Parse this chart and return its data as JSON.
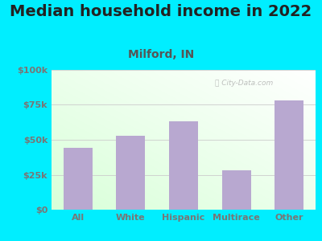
{
  "title": "Median household income in 2022",
  "subtitle": "Milford, IN",
  "categories": [
    "All",
    "White",
    "Hispanic",
    "Multirace",
    "Other"
  ],
  "values": [
    44000,
    53000,
    63000,
    28000,
    78000
  ],
  "bar_color": "#b8a8d0",
  "title_fontsize": 14,
  "title_color": "#222222",
  "subtitle_fontsize": 10,
  "subtitle_color": "#555555",
  "tick_label_color": "#777777",
  "background_outer": "#00eeff",
  "ylim": [
    0,
    100000
  ],
  "yticks": [
    0,
    25000,
    50000,
    75000,
    100000
  ],
  "ytick_labels": [
    "$0",
    "$25k",
    "$50k",
    "$75k",
    "$100k"
  ],
  "watermark": "City-Data.com",
  "grid_color": "#cccccc"
}
